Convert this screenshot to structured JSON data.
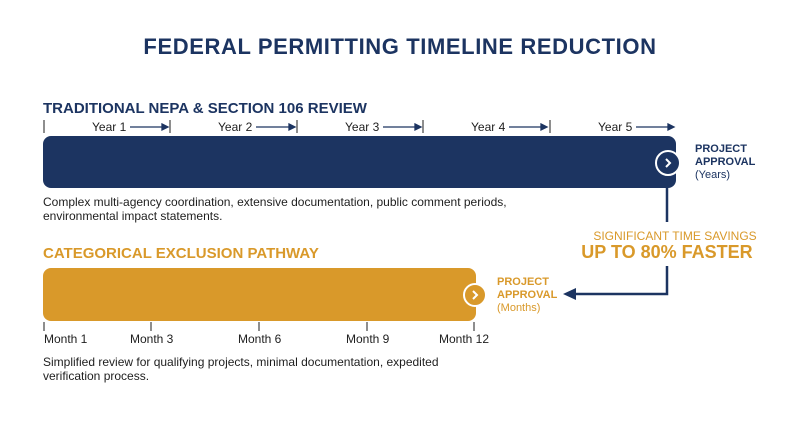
{
  "title": "FEDERAL PERMITTING TIMELINE REDUCTION",
  "traditional": {
    "title": "TRADITIONAL NEPA & SECTION 106 REVIEW",
    "years": [
      "Year 1",
      "Year 2",
      "Year 3",
      "Year 4",
      "Year 5"
    ],
    "approval_line1": "PROJECT",
    "approval_line2": "APPROVAL",
    "approval_unit": "(Years)",
    "description": "Complex multi-agency coordination, extensive documentation, public comment periods, environmental impact statements.",
    "color": "#1c3461"
  },
  "categorical": {
    "title": "CATEGORICAL EXCLUSION PATHWAY",
    "months": [
      "Month 1",
      "Month 3",
      "Month 6",
      "Month 9",
      "Month 12"
    ],
    "approval_line1": "PROJECT",
    "approval_line2": "APPROVAL",
    "approval_unit": "(Months)",
    "description": "Simplified review for qualifying projects, minimal documentation, expedited verification process.",
    "color": "#d9992a"
  },
  "savings": {
    "label": "SIGNIFICANT TIME SAVINGS",
    "headline": "UP TO 80% FASTER"
  },
  "icons": [
    "chevron-right-icon",
    "arrow-right-icon",
    "connector-arrow-icon"
  ]
}
